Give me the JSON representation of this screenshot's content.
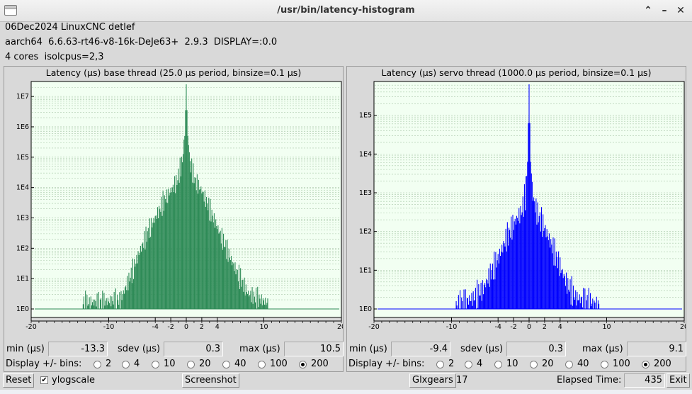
{
  "window": {
    "title": "/usr/bin/latency-histogram",
    "controls": {
      "shade": "chevron-up-icon",
      "minimize": "minimize-icon",
      "close": "close-icon"
    }
  },
  "info": {
    "line1": "06Dec2024 LinuxCNC detlef",
    "line2": "aarch64  6.6.63-rt46-v8-16k-DeJe63+  2.9.3  DISPLAY=:0.0",
    "line3": "4 cores  isolcpus=2,3"
  },
  "colors": {
    "base": "#2e8b57",
    "servo": "#0000ff",
    "plot_bg": "#f2fff2",
    "grid": "#a8c8a8"
  },
  "panels": [
    {
      "id": "base",
      "title": "Latency (µs) base thread (25.0 µs period, binsize=0.1 µs)",
      "stats": {
        "min_label": "min (µs)",
        "min": "-13.3",
        "sdev_label": "sdev (µs)",
        "sdev": "0.3",
        "max_label": "max (µs)",
        "max": "10.5"
      },
      "bins_label": "Display +/- bins:",
      "bin_options": [
        "2",
        "4",
        "10",
        "20",
        "40",
        "100",
        "200"
      ],
      "selected_bin": "200",
      "chart_data": {
        "type": "bar",
        "xlabel": "",
        "ylabel": "",
        "title": "",
        "xlim": [
          -20,
          20
        ],
        "y_scale": "log",
        "ylim_exp": [
          0,
          7.4
        ],
        "x_ticks": [
          "-20",
          "-10",
          "-4",
          "-2",
          "0",
          "2",
          "4",
          "10",
          "20"
        ],
        "x_tick_values": [
          -20,
          -10,
          -4,
          -2,
          0,
          2,
          4,
          10,
          20
        ],
        "y_ticks": [
          "1E0",
          "1E1",
          "1E2",
          "1E3",
          "1E4",
          "1E5",
          "1E6",
          "1E7"
        ],
        "grid": true,
        "envelope_x": [
          -13.3,
          -8.5,
          -8,
          -7,
          -6,
          -5,
          -4,
          -3,
          -2,
          -1.2,
          -0.5,
          -0.2,
          0,
          0.2,
          0.5,
          1.2,
          2,
          3,
          4,
          5,
          6,
          7,
          8,
          10.5
        ],
        "envelope_log": [
          0.2,
          0.3,
          0.6,
          1.2,
          1.9,
          2.5,
          3.0,
          3.5,
          3.9,
          4.2,
          4.9,
          5.7,
          7.4,
          5.7,
          4.8,
          4.2,
          3.9,
          3.3,
          2.7,
          2.1,
          1.5,
          1.0,
          0.5,
          0.2
        ]
      }
    },
    {
      "id": "servo",
      "title": "Latency (µs) servo thread (1000.0 µs period, binsize=0.1 µs)",
      "stats": {
        "min_label": "min (µs)",
        "min": "-9.4",
        "sdev_label": "sdev (µs)",
        "sdev": "0.3",
        "max_label": "max (µs)",
        "max": "9.1"
      },
      "bins_label": "Display +/- bins:",
      "bin_options": [
        "2",
        "4",
        "10",
        "20",
        "40",
        "100",
        "200"
      ],
      "selected_bin": "200",
      "chart_data": {
        "type": "bar",
        "xlabel": "",
        "ylabel": "",
        "title": "",
        "xlim": [
          -20,
          20
        ],
        "y_scale": "log",
        "ylim_exp": [
          0,
          5.8
        ],
        "x_ticks": [
          "-20",
          "-10",
          "-4",
          "-2",
          "0",
          "2",
          "4",
          "10",
          "20"
        ],
        "x_tick_values": [
          -20,
          -10,
          -4,
          -2,
          0,
          2,
          4,
          10,
          20
        ],
        "y_ticks": [
          "1E0",
          "1E1",
          "1E2",
          "1E3",
          "1E4",
          "1E5"
        ],
        "grid": true,
        "envelope_x": [
          -9.4,
          -7,
          -6,
          -5,
          -4,
          -3,
          -2,
          -1,
          -0.5,
          -0.2,
          0,
          0.2,
          0.5,
          1,
          2,
          3,
          4,
          5,
          6,
          9.1
        ],
        "envelope_log": [
          0.1,
          0.3,
          0.5,
          0.9,
          1.3,
          1.8,
          2.2,
          2.5,
          2.9,
          3.8,
          5.8,
          3.8,
          2.9,
          2.5,
          2.1,
          1.6,
          1.1,
          0.6,
          0.3,
          0.1
        ]
      }
    }
  ],
  "bottom": {
    "reset": "Reset",
    "ylogscale": "ylogscale",
    "ylogscale_checked": "✔",
    "screenshot": "Screenshot",
    "glxgears": "Glxgears",
    "glxgears_value": "17",
    "elapsed_label": "Elapsed Time:",
    "elapsed_value": "435",
    "exit": "Exit"
  }
}
